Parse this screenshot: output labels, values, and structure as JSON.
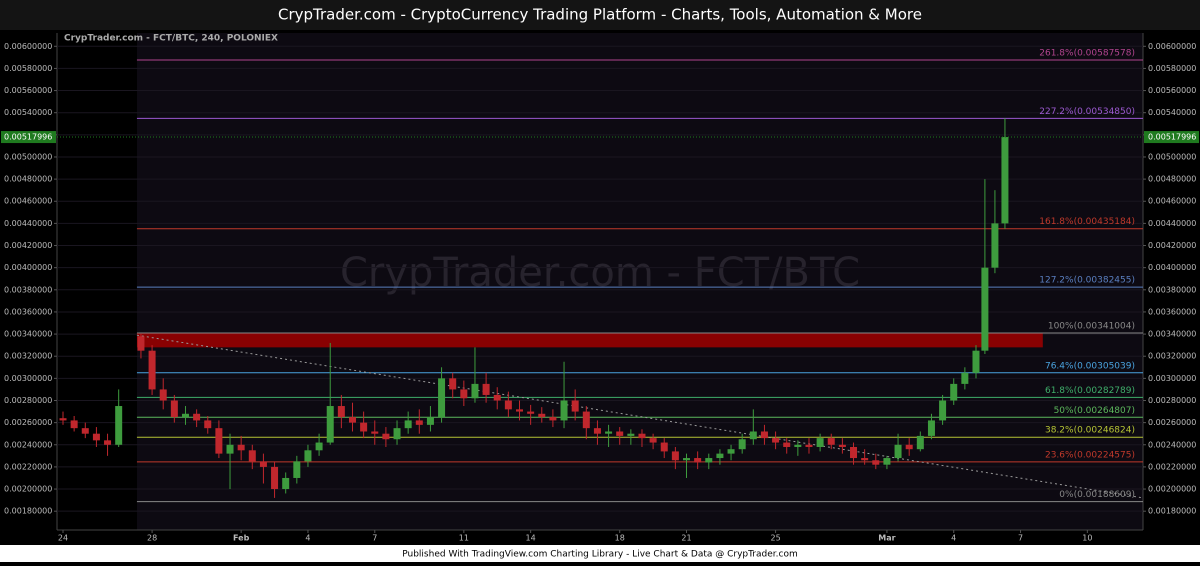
{
  "chart_data": {
    "type": "candlestick",
    "header": "CrypTrader.com  -  CryptoCurrency Trading Platform  -  Charts, Tools, Automation & More",
    "title": "CrypTrader.com - FCT/BTC, 240, POLONIEX",
    "watermark": "CrypTrader.com - FCT/BTC",
    "footer": "Published With TradingView.com Charting Library - Live Chart & Data @ CrypTrader.com",
    "x": [
      0,
      0.5,
      1,
      1.5,
      2,
      2.5,
      3.5,
      4,
      4.5,
      5,
      5.5,
      6,
      6.5,
      7,
      7.5,
      8,
      8.5,
      9,
      9.5,
      10,
      10.5,
      11,
      11.5,
      12,
      12.5,
      13,
      13.5,
      14,
      14.5,
      15,
      15.5,
      16,
      16.5,
      17,
      17.5,
      18,
      18.5,
      19,
      19.5,
      20,
      20.5,
      21,
      21.5,
      22,
      22.5,
      23,
      23.5,
      24,
      24.5,
      25,
      25.5,
      26,
      26.5,
      27,
      27.5,
      28,
      28.5,
      29,
      29.5,
      30,
      30.5,
      31,
      31.5,
      32,
      32.5,
      33,
      33.5,
      34,
      34.5,
      35,
      35.5,
      36,
      36.5,
      37,
      37.5,
      38,
      38.5,
      39,
      39.5,
      40,
      40.5,
      41,
      41.4,
      41.85,
      42.3
    ],
    "open": [
      0.00264,
      0.00262,
      0.00255,
      0.0025,
      0.00244,
      0.0024,
      0.00338,
      0.00325,
      0.0029,
      0.0028,
      0.00265,
      0.00268,
      0.00262,
      0.00255,
      0.00232,
      0.0024,
      0.00235,
      0.00225,
      0.0022,
      0.002,
      0.0021,
      0.00225,
      0.00235,
      0.00242,
      0.00275,
      0.00265,
      0.0026,
      0.00252,
      0.0025,
      0.00245,
      0.00255,
      0.00262,
      0.00258,
      0.00265,
      0.003,
      0.0029,
      0.00282,
      0.00295,
      0.00285,
      0.0028,
      0.00272,
      0.0027,
      0.00268,
      0.00265,
      0.00262,
      0.0028,
      0.0027,
      0.00255,
      0.0025,
      0.00252,
      0.00248,
      0.0025,
      0.00246,
      0.00242,
      0.00234,
      0.00226,
      0.00228,
      0.00224,
      0.00228,
      0.00232,
      0.00236,
      0.00245,
      0.00252,
      0.00246,
      0.00242,
      0.00238,
      0.0024,
      0.00238,
      0.00246,
      0.0024,
      0.00238,
      0.00228,
      0.00226,
      0.00222,
      0.00228,
      0.0024,
      0.00236,
      0.00248,
      0.00262,
      0.0028,
      0.00295,
      0.00305,
      0.00325,
      0.004,
      0.0044
    ],
    "high": [
      0.0027,
      0.00266,
      0.0026,
      0.00256,
      0.0025,
      0.0029,
      0.0034,
      0.0033,
      0.003,
      0.00285,
      0.00275,
      0.00272,
      0.00266,
      0.00262,
      0.0025,
      0.00248,
      0.0024,
      0.00232,
      0.00225,
      0.00215,
      0.0023,
      0.0024,
      0.0025,
      0.00332,
      0.00285,
      0.00278,
      0.0027,
      0.00262,
      0.00256,
      0.00262,
      0.0027,
      0.00272,
      0.00275,
      0.0031,
      0.00305,
      0.00298,
      0.00328,
      0.00305,
      0.00292,
      0.00288,
      0.0028,
      0.00276,
      0.00274,
      0.00272,
      0.00315,
      0.0029,
      0.00275,
      0.00262,
      0.00258,
      0.00256,
      0.00254,
      0.00254,
      0.0025,
      0.00246,
      0.00238,
      0.00232,
      0.00234,
      0.00232,
      0.00236,
      0.0024,
      0.0025,
      0.00272,
      0.00258,
      0.00252,
      0.00246,
      0.00244,
      0.00246,
      0.0025,
      0.0025,
      0.00246,
      0.00242,
      0.00236,
      0.00232,
      0.0023,
      0.0025,
      0.00246,
      0.00252,
      0.00268,
      0.00285,
      0.003,
      0.0031,
      0.0033,
      0.0048,
      0.0047,
      0.00535
    ],
    "low": [
      0.00258,
      0.00252,
      0.00246,
      0.00238,
      0.0023,
      0.00238,
      0.00318,
      0.00285,
      0.00272,
      0.0026,
      0.00258,
      0.00256,
      0.0025,
      0.00228,
      0.002,
      0.00226,
      0.00218,
      0.00205,
      0.00192,
      0.00196,
      0.00205,
      0.0022,
      0.0023,
      0.0024,
      0.00255,
      0.00252,
      0.00246,
      0.0024,
      0.00238,
      0.0024,
      0.0025,
      0.0025,
      0.00252,
      0.0026,
      0.00282,
      0.00275,
      0.00278,
      0.00278,
      0.00272,
      0.00265,
      0.00262,
      0.00258,
      0.0026,
      0.00256,
      0.00255,
      0.00262,
      0.00245,
      0.0024,
      0.00238,
      0.0024,
      0.0024,
      0.00238,
      0.00236,
      0.00228,
      0.00218,
      0.0021,
      0.00218,
      0.00218,
      0.00222,
      0.00226,
      0.00232,
      0.0024,
      0.0024,
      0.00236,
      0.00232,
      0.0023,
      0.00232,
      0.00234,
      0.00236,
      0.00232,
      0.00222,
      0.00222,
      0.00218,
      0.00218,
      0.00225,
      0.0023,
      0.00234,
      0.00245,
      0.00258,
      0.00276,
      0.0029,
      0.003,
      0.00322,
      0.00395,
      0.00435
    ],
    "close": [
      0.00262,
      0.00255,
      0.0025,
      0.00244,
      0.0024,
      0.00275,
      0.00325,
      0.0029,
      0.0028,
      0.00265,
      0.00268,
      0.00262,
      0.00255,
      0.00232,
      0.0024,
      0.00235,
      0.00225,
      0.0022,
      0.002,
      0.0021,
      0.00225,
      0.00235,
      0.00242,
      0.00275,
      0.00265,
      0.0026,
      0.00252,
      0.0025,
      0.00245,
      0.00255,
      0.00262,
      0.00258,
      0.00265,
      0.003,
      0.0029,
      0.00282,
      0.00295,
      0.00285,
      0.0028,
      0.00272,
      0.0027,
      0.00268,
      0.00265,
      0.00262,
      0.0028,
      0.0027,
      0.00255,
      0.0025,
      0.00252,
      0.00248,
      0.0025,
      0.00246,
      0.00242,
      0.00234,
      0.00226,
      0.00228,
      0.00224,
      0.00228,
      0.00232,
      0.00236,
      0.00245,
      0.00252,
      0.00246,
      0.00242,
      0.00238,
      0.0024,
      0.00238,
      0.00246,
      0.0024,
      0.00238,
      0.00228,
      0.00226,
      0.00222,
      0.00228,
      0.0024,
      0.00236,
      0.00248,
      0.00262,
      0.0028,
      0.00295,
      0.00305,
      0.00325,
      0.004,
      0.0044,
      0.00517996
    ],
    "up_color": "#3e9c3e",
    "down_color": "#c0272d",
    "last_price": 0.00517996,
    "last_price_color": "#1f7a1f",
    "xlim": [
      -0.27,
      48.5
    ],
    "xticks": [
      {
        "value": 0,
        "label": "24"
      },
      {
        "value": 4,
        "label": "28"
      },
      {
        "value": 8,
        "label": "Feb"
      },
      {
        "value": 11,
        "label": "4"
      },
      {
        "value": 14,
        "label": "7"
      },
      {
        "value": 18,
        "label": "11"
      },
      {
        "value": 21,
        "label": "14"
      },
      {
        "value": 25,
        "label": "18"
      },
      {
        "value": 28,
        "label": "21"
      },
      {
        "value": 32,
        "label": "25"
      },
      {
        "value": 37,
        "label": "Mar"
      },
      {
        "value": 40,
        "label": "4"
      },
      {
        "value": 43,
        "label": "7"
      },
      {
        "value": 46,
        "label": "10"
      }
    ],
    "ylim": [
      0.00163,
      0.00612
    ],
    "yticks": [
      {
        "value": 0.0018,
        "label": "0.00180000"
      },
      {
        "value": 0.002,
        "label": "0.00200000"
      },
      {
        "value": 0.0022,
        "label": "0.00220000"
      },
      {
        "value": 0.0024,
        "label": "0.00240000"
      },
      {
        "value": 0.0026,
        "label": "0.00260000"
      },
      {
        "value": 0.0028,
        "label": "0.00280000"
      },
      {
        "value": 0.003,
        "label": "0.00300000"
      },
      {
        "value": 0.0032,
        "label": "0.00320000"
      },
      {
        "value": 0.0034,
        "label": "0.00340000"
      },
      {
        "value": 0.0036,
        "label": "0.00360000"
      },
      {
        "value": 0.0038,
        "label": "0.00380000"
      },
      {
        "value": 0.004,
        "label": "0.00400000"
      },
      {
        "value": 0.0042,
        "label": "0.00420000"
      },
      {
        "value": 0.0044,
        "label": "0.00440000"
      },
      {
        "value": 0.0046,
        "label": "0.00460000"
      },
      {
        "value": 0.0048,
        "label": "0.00480000"
      },
      {
        "value": 0.005,
        "label": "0.00500000"
      },
      {
        "value": 0.0052,
        "label": "0.00520000"
      },
      {
        "value": 0.0054,
        "label": "0.00540000"
      },
      {
        "value": 0.0056,
        "label": "0.00560000"
      },
      {
        "value": 0.0058,
        "label": "0.00580000"
      },
      {
        "value": 0.006,
        "label": "0.00600000"
      }
    ],
    "fib_levels": [
      {
        "label": "261.8%(0.00587578)",
        "value": 0.00587578,
        "color": "#b0448e"
      },
      {
        "label": "227.2%(0.00534850)",
        "value": 0.0053485,
        "color": "#9b59d0"
      },
      {
        "label": "161.8%(0.00435184)",
        "value": 0.00435184,
        "color": "#c0392b"
      },
      {
        "label": "127.2%(0.00382455)",
        "value": 0.00382455,
        "color": "#5a7fc0"
      },
      {
        "label": "100%(0.00341004)",
        "value": 0.00341004,
        "color": "#888888"
      },
      {
        "label": "76.4%(0.00305039)",
        "value": 0.00305039,
        "color": "#4aa3df"
      },
      {
        "label": "61.8%(0.00282789)",
        "value": 0.00282789,
        "color": "#3fae6a"
      },
      {
        "label": "50%(0.00264807)",
        "value": 0.00264807,
        "color": "#5cb85c"
      },
      {
        "label": "38.2%(0.00246824)",
        "value": 0.00246824,
        "color": "#b5c334"
      },
      {
        "label": "23.6%(0.00224575)",
        "value": 0.00224575,
        "color": "#c0392b"
      },
      {
        "label": "0%(0.00188609)",
        "value": 0.00188609,
        "color": "#888888"
      }
    ],
    "fib_start_x": 3.32,
    "resistance_zone": {
      "x": [
        3.32,
        44.0
      ],
      "y": [
        0.00328,
        0.00341
      ],
      "color": "#a00000"
    },
    "trendline": {
      "x": [
        3.32,
        48.5
      ],
      "y": [
        0.00339,
        0.00192
      ]
    }
  }
}
